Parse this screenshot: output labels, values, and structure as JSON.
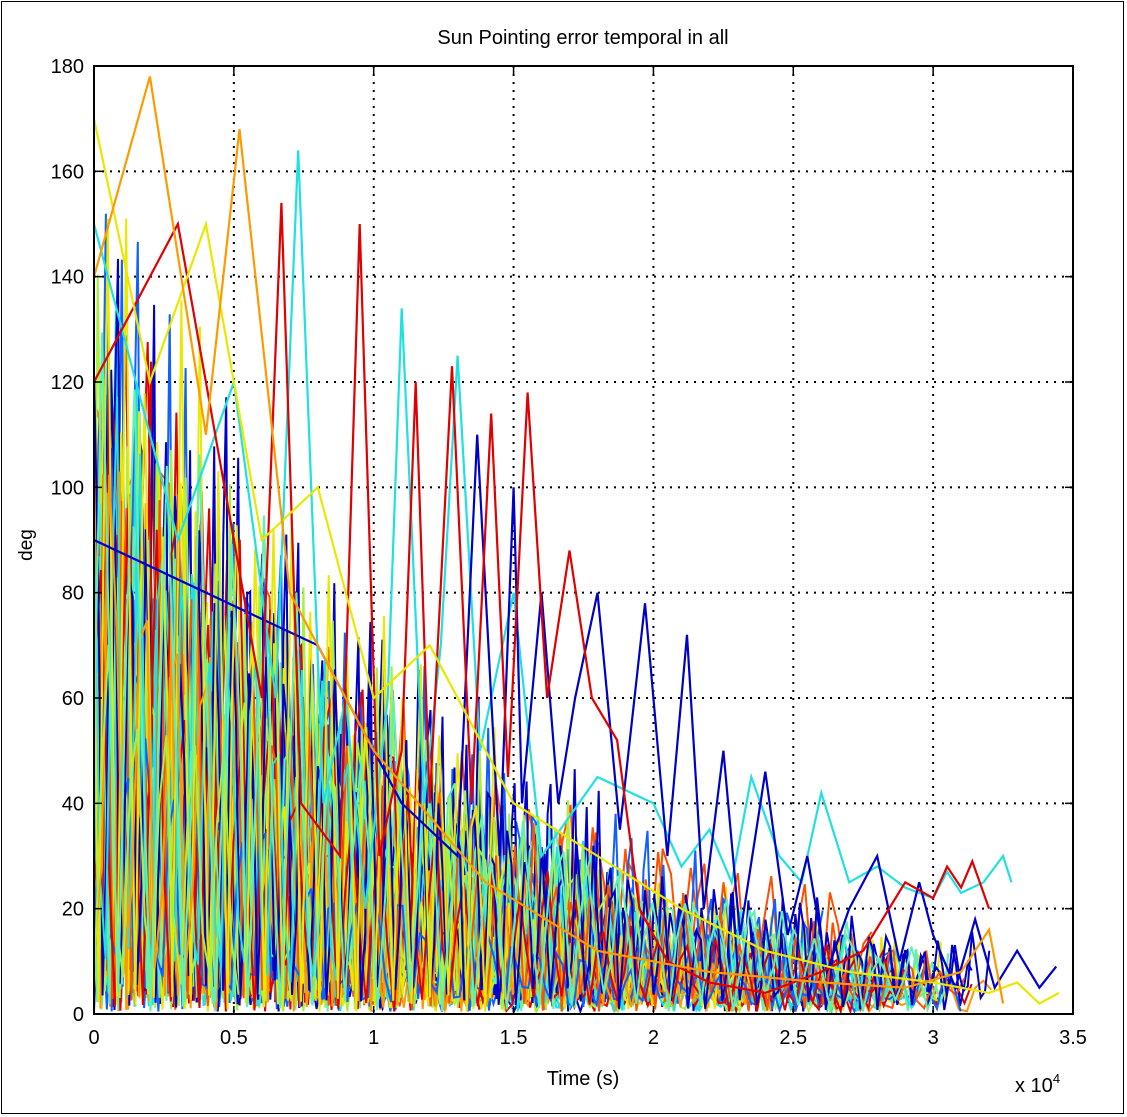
{
  "chart_data": {
    "type": "line",
    "title": "Sun Pointing error temporal in all",
    "xlabel": "Time (s)",
    "ylabel": "deg",
    "x_multiplier": "x 10",
    "x_exponent": "4",
    "xlim": [
      0,
      3.5
    ],
    "ylim": [
      0,
      180
    ],
    "xticks": [
      "0",
      "0.5",
      "1",
      "1.5",
      "2",
      "2.5",
      "3",
      "3.5"
    ],
    "yticks": [
      "0",
      "20",
      "40",
      "60",
      "80",
      "100",
      "120",
      "140",
      "160",
      "180"
    ],
    "grid": true,
    "legend": "none",
    "palette": [
      "#e00000",
      "#0000c8",
      "#20e0e0",
      "#e8e800",
      "#ff9900",
      "#a8f040",
      "#60f0b0",
      "#ff5000",
      "#1060ff"
    ],
    "series": [
      {
        "color": "#20e0e0",
        "points": [
          [
            0,
            150
          ],
          [
            0.3,
            90
          ],
          [
            0.5,
            120
          ],
          [
            0.65,
            60
          ],
          [
            0.73,
            164
          ],
          [
            0.82,
            40
          ],
          [
            0.9,
            60
          ],
          [
            0.97,
            20
          ],
          [
            1.05,
            60
          ],
          [
            1.1,
            134
          ],
          [
            1.18,
            40
          ],
          [
            1.24,
            70
          ],
          [
            1.3,
            125
          ],
          [
            1.38,
            50
          ],
          [
            1.5,
            80
          ],
          [
            1.6,
            30
          ],
          [
            1.8,
            45
          ],
          [
            2.0,
            40
          ],
          [
            2.1,
            28
          ],
          [
            2.2,
            35
          ],
          [
            2.28,
            25
          ],
          [
            2.35,
            45
          ],
          [
            2.45,
            30
          ],
          [
            2.53,
            25
          ],
          [
            2.6,
            42
          ],
          [
            2.7,
            25
          ],
          [
            2.8,
            28
          ],
          [
            2.9,
            24
          ],
          [
            3.0,
            22
          ],
          [
            3.05,
            27
          ],
          [
            3.1,
            23
          ],
          [
            3.18,
            25
          ],
          [
            3.25,
            30
          ],
          [
            3.28,
            25
          ]
        ]
      },
      {
        "color": "#0000c8",
        "points": [
          [
            0,
            90
          ],
          [
            0.8,
            70
          ],
          [
            1.1,
            40
          ],
          [
            1.3,
            30
          ],
          [
            1.37,
            110
          ],
          [
            1.45,
            30
          ],
          [
            1.5,
            100
          ],
          [
            1.53,
            40
          ],
          [
            1.6,
            80
          ],
          [
            1.66,
            40
          ],
          [
            1.72,
            60
          ],
          [
            1.8,
            80
          ],
          [
            1.88,
            35
          ],
          [
            1.97,
            78
          ],
          [
            2.05,
            30
          ],
          [
            2.12,
            72
          ],
          [
            2.18,
            20
          ],
          [
            2.25,
            50
          ],
          [
            2.31,
            15
          ],
          [
            2.4,
            46
          ],
          [
            2.48,
            15
          ],
          [
            2.55,
            30
          ],
          [
            2.62,
            8
          ],
          [
            2.7,
            20
          ],
          [
            2.8,
            30
          ],
          [
            2.88,
            10
          ],
          [
            2.95,
            25
          ],
          [
            3.0,
            15
          ],
          [
            3.08,
            5
          ],
          [
            3.15,
            18
          ],
          [
            3.22,
            5
          ],
          [
            3.3,
            12
          ],
          [
            3.38,
            5
          ],
          [
            3.44,
            9
          ]
        ]
      },
      {
        "color": "#e00000",
        "points": [
          [
            0,
            120
          ],
          [
            0.3,
            150
          ],
          [
            0.5,
            90
          ],
          [
            0.6,
            60
          ],
          [
            0.67,
            154
          ],
          [
            0.74,
            40
          ],
          [
            0.88,
            30
          ],
          [
            0.95,
            150
          ],
          [
            1.02,
            30
          ],
          [
            1.1,
            50
          ],
          [
            1.15,
            120
          ],
          [
            1.2,
            40
          ],
          [
            1.28,
            123
          ],
          [
            1.35,
            40
          ],
          [
            1.42,
            114
          ],
          [
            1.48,
            45
          ],
          [
            1.55,
            118
          ],
          [
            1.62,
            60
          ],
          [
            1.7,
            88
          ],
          [
            1.78,
            60
          ],
          [
            1.87,
            52
          ],
          [
            1.95,
            20
          ],
          [
            2.05,
            10
          ],
          [
            2.2,
            6
          ],
          [
            2.4,
            4
          ],
          [
            2.6,
            8
          ],
          [
            2.75,
            12
          ],
          [
            2.9,
            25
          ],
          [
            3.0,
            22
          ],
          [
            3.05,
            28
          ],
          [
            3.1,
            24
          ],
          [
            3.14,
            29
          ],
          [
            3.2,
            20
          ]
        ]
      },
      {
        "color": "#e8e800",
        "points": [
          [
            0,
            170
          ],
          [
            0.2,
            120
          ],
          [
            0.4,
            150
          ],
          [
            0.6,
            90
          ],
          [
            0.8,
            100
          ],
          [
            1.0,
            60
          ],
          [
            1.2,
            70
          ],
          [
            1.5,
            40
          ],
          [
            1.8,
            30
          ],
          [
            2.1,
            20
          ],
          [
            2.4,
            12
          ],
          [
            2.7,
            8
          ],
          [
            3.0,
            6
          ],
          [
            3.2,
            4
          ],
          [
            3.3,
            6
          ],
          [
            3.38,
            2
          ],
          [
            3.45,
            4
          ]
        ]
      },
      {
        "color": "#ff9900",
        "points": [
          [
            0,
            140
          ],
          [
            0.2,
            178
          ],
          [
            0.4,
            110
          ],
          [
            0.52,
            168
          ],
          [
            0.7,
            80
          ],
          [
            1.0,
            50
          ],
          [
            1.4,
            25
          ],
          [
            1.8,
            12
          ],
          [
            2.2,
            8
          ],
          [
            2.6,
            6
          ],
          [
            2.9,
            5
          ],
          [
            3.1,
            8
          ],
          [
            3.2,
            16
          ],
          [
            3.25,
            2
          ]
        ]
      }
    ]
  }
}
